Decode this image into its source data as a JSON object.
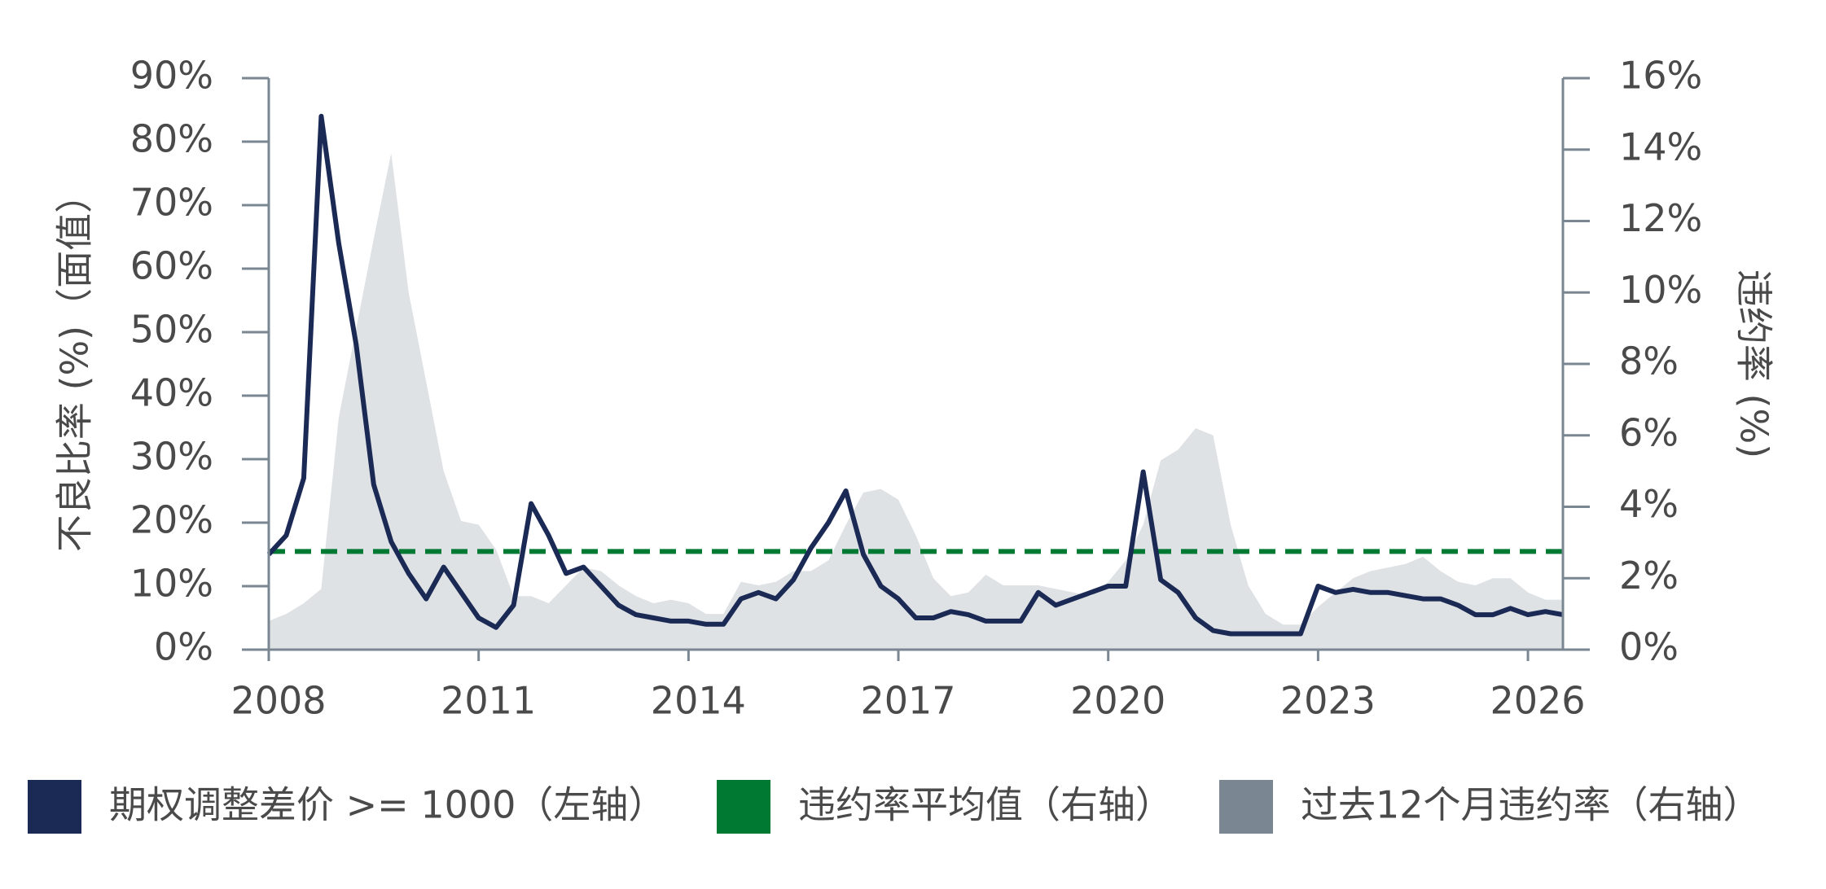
{
  "chart_data": {
    "type": "line",
    "ylabel": "不良比率 (%)（面值）",
    "y2label": "违约率 (%)",
    "xlim": [
      2008,
      2026.5
    ],
    "xticks": [
      2008,
      2011,
      2014,
      2017,
      2020,
      2023,
      2026
    ],
    "ylim": [
      0,
      90
    ],
    "yticks": [
      {
        "value": 0,
        "label": "0%"
      },
      {
        "value": 10,
        "label": "10%"
      },
      {
        "value": 20,
        "label": "20%"
      },
      {
        "value": 30,
        "label": "30%"
      },
      {
        "value": 40,
        "label": "40%"
      },
      {
        "value": 50,
        "label": "50%"
      },
      {
        "value": 60,
        "label": "60%"
      },
      {
        "value": 70,
        "label": "70%"
      },
      {
        "value": 80,
        "label": "80%"
      },
      {
        "value": 90,
        "label": "90%"
      }
    ],
    "y2lim": [
      0,
      16
    ],
    "y2ticks": [
      {
        "value": 0,
        "label": "0%"
      },
      {
        "value": 2,
        "label": "2%"
      },
      {
        "value": 4,
        "label": "4%"
      },
      {
        "value": 6,
        "label": "6%"
      },
      {
        "value": 8,
        "label": "8%"
      },
      {
        "value": 10,
        "label": "10%"
      },
      {
        "value": 12,
        "label": "12%"
      },
      {
        "value": 14,
        "label": "14%"
      },
      {
        "value": 16,
        "label": "16%"
      }
    ],
    "x": [
      2008,
      2008.25,
      2008.5,
      2008.75,
      2009,
      2009.25,
      2009.5,
      2009.75,
      2010,
      2010.25,
      2010.5,
      2010.75,
      2011,
      2011.25,
      2011.5,
      2011.75,
      2012,
      2012.25,
      2012.5,
      2012.75,
      2013,
      2013.25,
      2013.5,
      2013.75,
      2014,
      2014.25,
      2014.5,
      2014.75,
      2015,
      2015.25,
      2015.5,
      2015.75,
      2016,
      2016.25,
      2016.5,
      2016.75,
      2017,
      2017.25,
      2017.5,
      2017.75,
      2018,
      2018.25,
      2018.5,
      2018.75,
      2019,
      2019.25,
      2019.5,
      2019.75,
      2020,
      2020.25,
      2020.5,
      2020.75,
      2021,
      2021.25,
      2021.5,
      2021.75,
      2022,
      2022.25,
      2022.5,
      2022.75,
      2023,
      2023.25,
      2023.5,
      2023.75,
      2024,
      2024.25,
      2024.5,
      2024.75,
      2025,
      2025.25,
      2025.5,
      2025.75,
      2026,
      2026.25,
      2026.5
    ],
    "series": [
      {
        "name": "期权调整差价 >= 1000（左轴）",
        "color": "#1b2a55",
        "style": "line",
        "axis": "y",
        "values": [
          15,
          18,
          27,
          84,
          64,
          48,
          26,
          17,
          12,
          8,
          13,
          9,
          5,
          3.5,
          7,
          23,
          18,
          12,
          13,
          10,
          7,
          5.5,
          5,
          4.5,
          4.5,
          4,
          4,
          8,
          9,
          8,
          11,
          16,
          20,
          25,
          15,
          10,
          8,
          5,
          5,
          6,
          5.5,
          4.5,
          4.5,
          4.5,
          9,
          7,
          8,
          9,
          10,
          10,
          28,
          11,
          9,
          5,
          3,
          2.5,
          2.5,
          2.5,
          2.5,
          2.5,
          10,
          9,
          9.5,
          9,
          9,
          8.5,
          8,
          8,
          7,
          5.5,
          5.5,
          6.5,
          5.5,
          6,
          5.5
        ]
      },
      {
        "name": "过去12个月违约率（右轴）",
        "color": "#7a8793",
        "fill": "#dfe2e5",
        "style": "area",
        "axis": "y2",
        "values": [
          0.8,
          1.0,
          1.3,
          1.7,
          6.5,
          9,
          11.5,
          13.9,
          10,
          7.5,
          5,
          3.6,
          3.5,
          2.8,
          1.5,
          1.5,
          1.3,
          1.8,
          2.3,
          2.2,
          1.8,
          1.5,
          1.3,
          1.4,
          1.3,
          1.0,
          1.0,
          1.9,
          1.8,
          1.9,
          2.2,
          2.2,
          2.5,
          3.5,
          4.4,
          4.5,
          4.2,
          3.2,
          2.0,
          1.5,
          1.6,
          2.1,
          1.8,
          1.8,
          1.8,
          1.7,
          1.6,
          1.5,
          1.9,
          2.5,
          3.5,
          5.3,
          5.6,
          6.2,
          6.0,
          3.5,
          1.8,
          1.0,
          0.7,
          0.7,
          1.2,
          1.6,
          2.0,
          2.2,
          2.3,
          2.4,
          2.6,
          2.2,
          1.9,
          1.8,
          2.0,
          2.0,
          1.6,
          1.4,
          1.4
        ]
      }
    ],
    "hlines": [
      {
        "name": "违约率平均值（右轴）",
        "color": "#007a33",
        "value": 2.75,
        "axis": "y2",
        "dashed": true
      }
    ]
  }
}
